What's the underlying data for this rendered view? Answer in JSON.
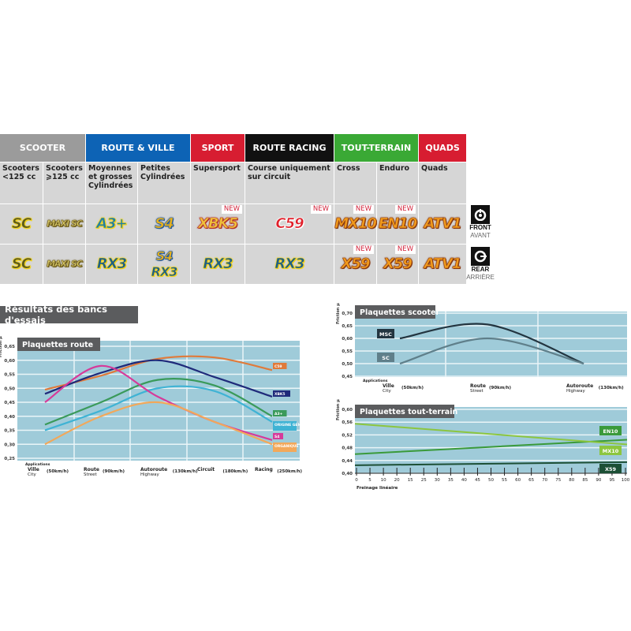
{
  "table": {
    "categories": [
      {
        "label": "SCOOTER",
        "color": "#9b9b9b",
        "span": 2
      },
      {
        "label": "ROUTE & VILLE",
        "color": "#0d63b5",
        "span": 2
      },
      {
        "label": "SPORT",
        "color": "#d71d31",
        "span": 1
      },
      {
        "label": "ROUTE RACING",
        "color": "#111111",
        "span": 1
      },
      {
        "label": "TOUT-TERRAIN",
        "color": "#3aa935",
        "span": 2
      },
      {
        "label": "QUADS",
        "color": "#d71d31",
        "span": 1
      }
    ],
    "subcategories": [
      "Scooters <125 cc",
      "Scooters ⩾125 cc",
      "Moyennes et grosses Cylindrées",
      "Petites Cylindrées",
      "Supersport",
      "Course uniquement sur circuit",
      "Cross",
      "Enduro",
      "Quads"
    ],
    "front": [
      {
        "logos": [
          {
            "text": "SC",
            "fill": "#5b5a1e",
            "stroke": "#f2d21a"
          }
        ],
        "new": ""
      },
      {
        "logos": [
          {
            "text": "MAXI SC",
            "fill": "#d8c96a",
            "stroke": "#6b5a1a"
          }
        ],
        "new": ""
      },
      {
        "logos": [
          {
            "text": "A3+",
            "fill": "#1d7fa8",
            "stroke": "#f2d21a"
          }
        ],
        "new": ""
      },
      {
        "logos": [
          {
            "text": "S4",
            "fill": "#e8b21c",
            "stroke": "#2a5d9a"
          }
        ],
        "new": ""
      },
      {
        "logos": [
          {
            "text": "XBK5",
            "fill": "#f0c23a",
            "stroke": "#b2342a"
          }
        ],
        "new": "NEW"
      },
      {
        "logos": [
          {
            "text": "C59",
            "fill": "#e01f2a",
            "stroke": "#ffffff"
          }
        ],
        "new": "NEW"
      },
      {
        "logos": [
          {
            "text": "MX10",
            "fill": "#f19a1c",
            "stroke": "#8a3a10"
          }
        ],
        "new": "NEW"
      },
      {
        "logos": [
          {
            "text": "EN10",
            "fill": "#f19a1c",
            "stroke": "#8a3a10"
          }
        ],
        "new": "NEW"
      },
      {
        "logos": [
          {
            "text": "ATV1",
            "fill": "#f19a1c",
            "stroke": "#8a3a10"
          }
        ],
        "new": ""
      }
    ],
    "rear": [
      {
        "logos": [
          {
            "text": "SC",
            "fill": "#5b5a1e",
            "stroke": "#f2d21a"
          }
        ],
        "new": ""
      },
      {
        "logos": [
          {
            "text": "MAXI SC",
            "fill": "#d8c96a",
            "stroke": "#6b5a1a"
          }
        ],
        "new": ""
      },
      {
        "logos": [
          {
            "text": "RX3",
            "fill": "#1d5f86",
            "stroke": "#f2d21a"
          }
        ],
        "new": ""
      },
      {
        "logos": [
          {
            "text": "S4",
            "fill": "#e8b21c",
            "stroke": "#2a5d9a"
          },
          {
            "text": "RX3",
            "fill": "#1d5f86",
            "stroke": "#f2d21a"
          }
        ],
        "new": ""
      },
      {
        "logos": [
          {
            "text": "RX3",
            "fill": "#1d5f86",
            "stroke": "#f2d21a"
          }
        ],
        "new": ""
      },
      {
        "logos": [
          {
            "text": "RX3",
            "fill": "#1d5f86",
            "stroke": "#f2d21a"
          }
        ],
        "new": ""
      },
      {
        "logos": [
          {
            "text": "X59",
            "fill": "#f19a1c",
            "stroke": "#8a3a10"
          }
        ],
        "new": "NEW"
      },
      {
        "logos": [
          {
            "text": "X59",
            "fill": "#f19a1c",
            "stroke": "#8a3a10"
          }
        ],
        "new": "NEW"
      },
      {
        "logos": [
          {
            "text": "ATV1",
            "fill": "#f19a1c",
            "stroke": "#8a3a10"
          }
        ],
        "new": ""
      }
    ],
    "front_label": {
      "icon": "front-disc-icon",
      "en": "FRONT",
      "fr": "AVANT"
    },
    "rear_label": {
      "icon": "rear-disc-icon",
      "en": "REAR",
      "fr": "ARRIÈRE"
    }
  },
  "section_title": "Résultats des bancs d'essais",
  "chart_data": [
    {
      "type": "line",
      "title": "Plaquettes route",
      "ylabel": "Friction µ",
      "xlabel_prefix": "Applications",
      "ylim": [
        0.25,
        0.65
      ],
      "yticks": [
        "0,65",
        "0,60",
        "0,55",
        "0,50",
        "0,45",
        "0,40",
        "0,35",
        "0,30",
        "0,25"
      ],
      "grid": true,
      "categories": [
        {
          "fr": "Ville",
          "en": "City",
          "speed": "(50km/h)"
        },
        {
          "fr": "Route",
          "en": "Street",
          "speed": "(90km/h)"
        },
        {
          "fr": "Autoroute",
          "en": "Highway",
          "speed": "(130km/h)"
        },
        {
          "fr": "Circuit",
          "en": "",
          "speed": "(180km/h)"
        },
        {
          "fr": "Racing",
          "en": "",
          "speed": "(250km/h)"
        }
      ],
      "series": [
        {
          "name": "C59",
          "color": "#e07a3a",
          "values": [
            0.495,
            0.545,
            0.605,
            0.61,
            0.565
          ]
        },
        {
          "name": "XBK5",
          "color": "#1f2a7a",
          "values": [
            0.48,
            0.555,
            0.6,
            0.54,
            0.47
          ]
        },
        {
          "name": "A3+",
          "color": "#3a9a5a",
          "values": [
            0.37,
            0.45,
            0.53,
            0.51,
            0.4
          ]
        },
        {
          "name": "ORIGINE GENUINE",
          "color": "#3fb3d4",
          "values": [
            0.35,
            0.42,
            0.5,
            0.49,
            0.38
          ]
        },
        {
          "name": "S4",
          "color": "#d63a9a",
          "values": [
            0.45,
            0.58,
            0.47,
            0.38,
            0.315
          ]
        },
        {
          "name": "ORGANIQUE ORGANIC",
          "color": "#f2a85a",
          "values": [
            0.3,
            0.4,
            0.45,
            0.38,
            0.3
          ]
        }
      ]
    },
    {
      "type": "line",
      "title": "Plaquettes scooter",
      "ylabel": "Friction µ",
      "xlabel_prefix": "Applications",
      "ylim": [
        0.45,
        0.7
      ],
      "yticks": [
        "0,70",
        "0,65",
        "0,60",
        "0,55",
        "0,50",
        "0,45"
      ],
      "grid": true,
      "categories": [
        {
          "fr": "Ville",
          "en": "City",
          "speed": "(50km/h)"
        },
        {
          "fr": "Route",
          "en": "Street",
          "speed": "(90km/h)"
        },
        {
          "fr": "Autoroute",
          "en": "Highway",
          "speed": "(130km/h)"
        }
      ],
      "series": [
        {
          "name": "MSC",
          "color": "#233540",
          "values": [
            0.6,
            0.655,
            0.5
          ]
        },
        {
          "name": "SC",
          "color": "#5f7f8a",
          "values": [
            0.5,
            0.6,
            0.5
          ]
        }
      ]
    },
    {
      "type": "line",
      "title": "Plaquettes tout-terrain",
      "ylabel": "Friction µ",
      "xlabel": "Freinage linéaire",
      "ylim": [
        0.4,
        0.6
      ],
      "xlim": [
        0,
        100
      ],
      "yticks": [
        "0,60",
        "0,56",
        "0,52",
        "0,48",
        "0,44",
        "0,40"
      ],
      "xticks": [
        "0",
        "5",
        "10",
        "20",
        "15",
        "25",
        "30",
        "35",
        "40",
        "45",
        "50",
        "55",
        "60",
        "65",
        "70",
        "75",
        "80",
        "85",
        "90",
        "95",
        "100"
      ],
      "grid": true,
      "series": [
        {
          "name": "EN10",
          "color": "#3a9a3a",
          "x": [
            0,
            100
          ],
          "values": [
            0.46,
            0.505
          ]
        },
        {
          "name": "MX10",
          "color": "#8cc63f",
          "x": [
            0,
            100
          ],
          "values": [
            0.555,
            0.49
          ]
        },
        {
          "name": "X59",
          "color": "#1c4f35",
          "x": [
            0,
            100
          ],
          "values": [
            0.425,
            0.435
          ]
        }
      ]
    }
  ]
}
